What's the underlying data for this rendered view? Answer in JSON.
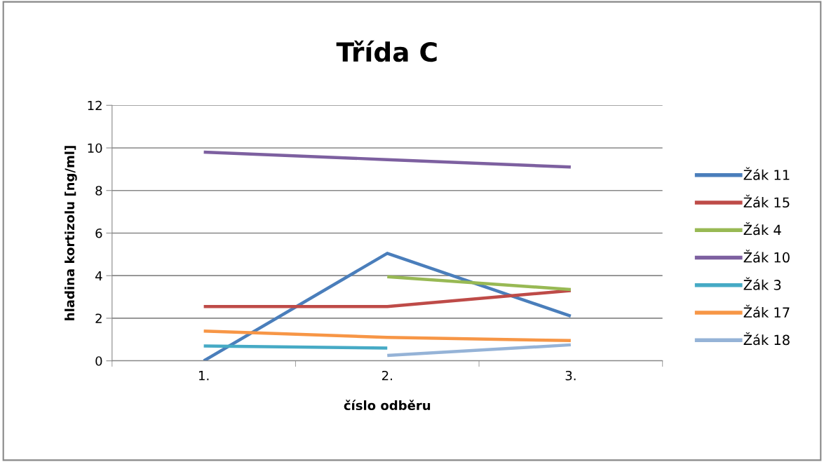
{
  "chart_data": {
    "type": "line",
    "title": "Třída C",
    "xlabel": "číslo odběru",
    "ylabel": "hladina kortizolu [ng/ml]",
    "categories": [
      "1.",
      "2.",
      "3."
    ],
    "ylim": [
      0,
      12
    ],
    "yticks": [
      0,
      2,
      4,
      6,
      8,
      10,
      12
    ],
    "grid": "y",
    "legend": "right",
    "marker": "none",
    "line_style": "solid",
    "series": [
      {
        "name": "Žák 11",
        "color": "#4a7ebb",
        "values": [
          0,
          5.05,
          2.1
        ]
      },
      {
        "name": "Žák 15",
        "color": "#be4b48",
        "values": [
          2.55,
          2.55,
          3.3
        ]
      },
      {
        "name": "Žák 4",
        "color": "#98b954",
        "values": [
          null,
          3.95,
          3.35
        ]
      },
      {
        "name": "Žák 10",
        "color": "#7d60a0",
        "values": [
          9.8,
          9.45,
          9.1
        ]
      },
      {
        "name": "Žák 3",
        "color": "#46aac5",
        "values": [
          0.7,
          0.6,
          null
        ]
      },
      {
        "name": "Žák 17",
        "color": "#f79646",
        "values": [
          1.4,
          1.1,
          0.95
        ]
      },
      {
        "name": "Žák 18",
        "color": "#95b3d7",
        "values": [
          null,
          0.25,
          0.75
        ]
      }
    ]
  }
}
